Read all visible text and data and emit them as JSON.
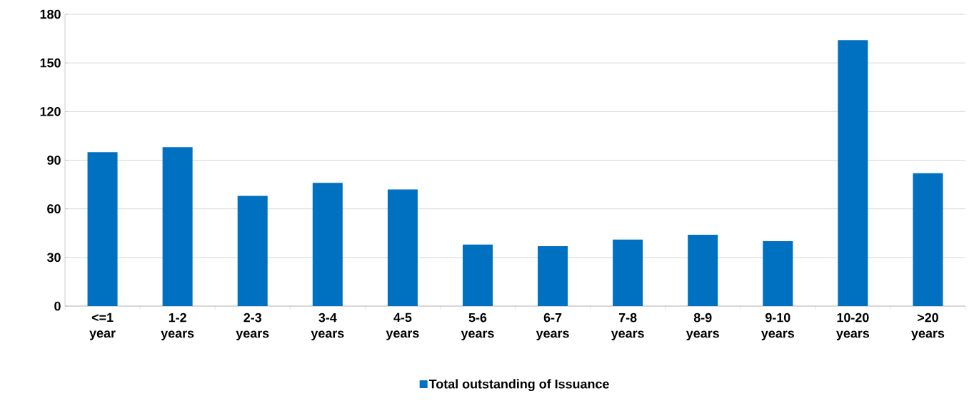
{
  "chart_data": {
    "type": "bar",
    "categories": [
      "<=1 year",
      "1-2 years",
      "2-3 years",
      "3-4 years",
      "4-5 years",
      "5-6 years",
      "6-7 years",
      "7-8 years",
      "8-9 years",
      "9-10 years",
      "10-20 years",
      ">20 years"
    ],
    "series": [
      {
        "name": "Total outstanding of Issuance",
        "color": "#0070c0",
        "values": [
          95,
          98,
          68,
          76,
          72,
          38,
          37,
          41,
          44,
          40,
          164,
          82
        ]
      }
    ],
    "ylim": [
      0,
      180
    ],
    "yticks": [
      0,
      30,
      60,
      90,
      120,
      150,
      180
    ],
    "grid": "y",
    "legend": "bottom"
  }
}
